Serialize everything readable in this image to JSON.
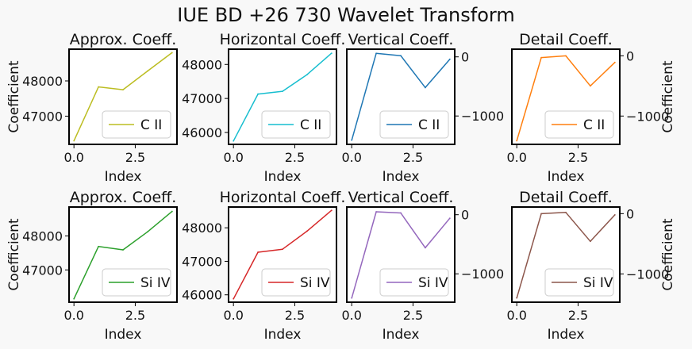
{
  "figure": {
    "title": "IUE BD +26 730 Wavelet Transform",
    "background": "#f8f8f8"
  },
  "chart_data": [
    {
      "type": "line",
      "title": "Approx. Coeff.",
      "xlabel": "Index",
      "ylabel": "Coefficient",
      "yaxis_side": "left",
      "xlim": [
        -0.2,
        4.2
      ],
      "ylim": [
        46200,
        48900
      ],
      "xticks": [
        0.0,
        2.5
      ],
      "xtick_labels": [
        "0.0",
        "2.5"
      ],
      "yticks": [
        47000,
        48000
      ],
      "ytick_labels": [
        "47000",
        "48000"
      ],
      "legend": "lower-right",
      "series": [
        {
          "name": "C II",
          "color": "#bcbd22",
          "x": [
            0,
            1,
            2,
            3,
            4
          ],
          "y": [
            46300,
            47830,
            47750,
            48280,
            48800
          ]
        }
      ]
    },
    {
      "type": "line",
      "title": "Horizontal Coeff.",
      "xlabel": "Index",
      "ylabel": "",
      "yaxis_side": "left",
      "xlim": [
        -0.2,
        4.2
      ],
      "ylim": [
        45650,
        48450
      ],
      "xticks": [
        0.0,
        2.5
      ],
      "xtick_labels": [
        "0.0",
        "2.5"
      ],
      "yticks": [
        46000,
        47000,
        48000
      ],
      "ytick_labels": [
        "46000",
        "47000",
        "48000"
      ],
      "legend": "lower-right",
      "series": [
        {
          "name": "C II",
          "color": "#17becf",
          "x": [
            0,
            1,
            2,
            3,
            4
          ],
          "y": [
            45750,
            47130,
            47210,
            47700,
            48330
          ]
        }
      ]
    },
    {
      "type": "line",
      "title": "Vertical Coeff.",
      "xlabel": "Index",
      "ylabel": "",
      "yaxis_side": "right",
      "xlim": [
        -0.2,
        4.2
      ],
      "ylim": [
        -1480,
        130
      ],
      "xticks": [
        0.0,
        2.5
      ],
      "xtick_labels": [
        "0.0",
        "2.5"
      ],
      "yticks": [
        -1000,
        0
      ],
      "ytick_labels": [
        "−1000",
        "0"
      ],
      "legend": "lower-right",
      "series": [
        {
          "name": "C II",
          "color": "#1f77b4",
          "x": [
            0,
            1,
            2,
            3,
            4
          ],
          "y": [
            -1410,
            60,
            20,
            -520,
            -40
          ]
        }
      ]
    },
    {
      "type": "line",
      "title": "Detail Coeff.",
      "xlabel": "Index",
      "ylabel": "Coefficient",
      "yaxis_side": "right",
      "xlim": [
        -0.2,
        4.2
      ],
      "ylim": [
        -1470,
        110
      ],
      "xticks": [
        0.0,
        2.5
      ],
      "xtick_labels": [
        "0.0",
        "2.5"
      ],
      "yticks": [
        -1000,
        0
      ],
      "ytick_labels": [
        "−1000",
        "0"
      ],
      "legend": "lower-right",
      "series": [
        {
          "name": "C II",
          "color": "#ff7f0e",
          "x": [
            0,
            1,
            2,
            3,
            4
          ],
          "y": [
            -1410,
            -30,
            0,
            -500,
            -110
          ]
        }
      ]
    },
    {
      "type": "line",
      "title": "Approx. Coeff.",
      "xlabel": "Index",
      "ylabel": "Coefficient",
      "yaxis_side": "left",
      "xlim": [
        -0.2,
        4.2
      ],
      "ylim": [
        46050,
        48850
      ],
      "xticks": [
        0.0,
        2.5
      ],
      "xtick_labels": [
        "0.0",
        "2.5"
      ],
      "yticks": [
        47000,
        48000
      ],
      "ytick_labels": [
        "47000",
        "48000"
      ],
      "legend": "lower-right",
      "series": [
        {
          "name": "Si IV",
          "color": "#2ca02c",
          "x": [
            0,
            1,
            2,
            3,
            4
          ],
          "y": [
            46150,
            47690,
            47590,
            48120,
            48720
          ]
        }
      ]
    },
    {
      "type": "line",
      "title": "Horizontal Coeff.",
      "xlabel": "Index",
      "ylabel": "",
      "yaxis_side": "left",
      "xlim": [
        -0.2,
        4.2
      ],
      "ylim": [
        45780,
        48620
      ],
      "xticks": [
        0.0,
        2.5
      ],
      "xtick_labels": [
        "0.0",
        "2.5"
      ],
      "yticks": [
        46000,
        47000,
        48000
      ],
      "ytick_labels": [
        "46000",
        "47000",
        "48000"
      ],
      "legend": "lower-right",
      "series": [
        {
          "name": "Si IV",
          "color": "#d62728",
          "x": [
            0,
            1,
            2,
            3,
            4
          ],
          "y": [
            45880,
            47270,
            47360,
            47900,
            48520
          ]
        }
      ]
    },
    {
      "type": "line",
      "title": "Vertical Coeff.",
      "xlabel": "Index",
      "ylabel": "",
      "yaxis_side": "right",
      "xlim": [
        -0.2,
        4.2
      ],
      "ylim": [
        -1480,
        130
      ],
      "xticks": [
        0.0,
        2.5
      ],
      "xtick_labels": [
        "0.0",
        "2.5"
      ],
      "yticks": [
        -1000,
        0
      ],
      "ytick_labels": [
        "−1000",
        "0"
      ],
      "legend": "lower-right",
      "series": [
        {
          "name": "Si IV",
          "color": "#9467bd",
          "x": [
            0,
            1,
            2,
            3,
            4
          ],
          "y": [
            -1410,
            50,
            30,
            -560,
            -60
          ]
        }
      ]
    },
    {
      "type": "line",
      "title": "Detail Coeff.",
      "xlabel": "Index",
      "ylabel": "Coefficient",
      "yaxis_side": "right",
      "xlim": [
        -0.2,
        4.2
      ],
      "ylim": [
        -1470,
        110
      ],
      "xticks": [
        0.0,
        2.5
      ],
      "xtick_labels": [
        "0.0",
        "2.5"
      ],
      "yticks": [
        -1000,
        0
      ],
      "ytick_labels": [
        "−1000",
        "0"
      ],
      "legend": "lower-right",
      "series": [
        {
          "name": "Si IV",
          "color": "#8c564b",
          "x": [
            0,
            1,
            2,
            3,
            4
          ],
          "y": [
            -1400,
            0,
            20,
            -460,
            -20
          ]
        }
      ]
    }
  ]
}
